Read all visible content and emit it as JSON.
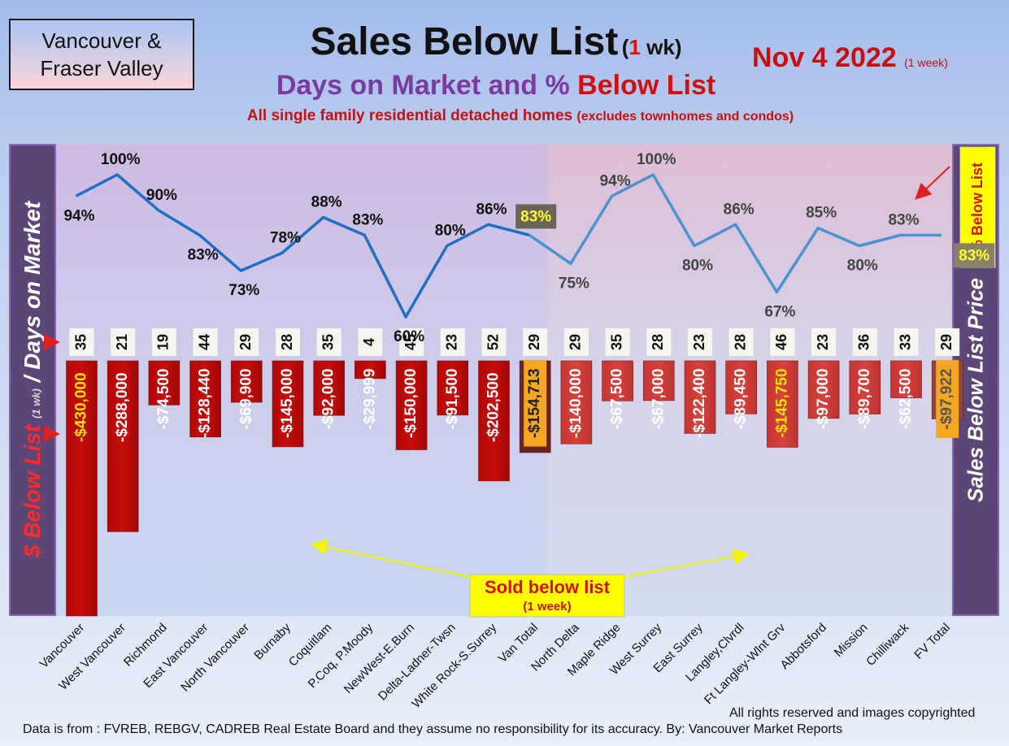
{
  "header": {
    "region": [
      "Vancouver &",
      "Fraser Valley"
    ],
    "title_main": "Sales Below List",
    "title_open": "(",
    "title_num": "1",
    "title_unit": " wk)",
    "subtitle_a": "Days on Market and % ",
    "subtitle_b": "Below List",
    "subtitle2_a": "All single family residential detached homes ",
    "subtitle2_b": "(excludes townhomes and condos)",
    "date": "Nov 4  2022 ",
    "date_note": "(1 week)"
  },
  "side_labels": {
    "left_a": "$ Below List ",
    "left_b": "(1 wk)",
    "left_c": " / Days on Market",
    "right": "Sales Below List Price",
    "pct_box": "% Below List"
  },
  "annotation": {
    "sold_line1": "Sold below list",
    "sold_line2": "(1 week)"
  },
  "footer": {
    "rights": "All rights reserved and  images copyrighted",
    "source": "Data is from : FVREB, REBGV, CADREB Real Estate Board and they assume no responsibility for its accuracy. By: Vancouver Market Reports"
  },
  "colors": {
    "bar_van": "#c80c0c",
    "bar_fv": "#d8413c",
    "bar_total_van": "#6b2222",
    "bar_total_fv": "#8b4a3c",
    "line_van": "#1f6fc4",
    "line_fv": "#4b94cf",
    "panel_bar": "#5c4577"
  },
  "chart_data": {
    "type": "bar",
    "categories": [
      "Vancouver",
      "West Vancouver",
      "Richmond",
      "East Vancouver",
      "North Vancouver",
      "Burnaby",
      "Coquitlam",
      "P.Coq, P.Moody",
      "NewWest-E.Burn",
      "Delta-Ladner-Twsn",
      "White Rock-S.Surrey",
      "Van Total",
      "North Delta",
      "Maple Ridge",
      "West Surrey",
      "East Surrey",
      "Langley,Clvrdl",
      "Ft Langley-Wlnt Grv",
      "Abbotsford",
      "Mission",
      "Chilliwack",
      "FV Total"
    ],
    "below_list_labels": [
      "-$430,000",
      "-$288,000",
      "-$74,500",
      "-$128,440",
      "-$69,900",
      "-$145,000",
      "-$92,000",
      "-$29,999",
      "-$150,000",
      "-$91,500",
      "-$202,500",
      "-$154,713",
      "-$140,000",
      "-$67,500",
      "-$67,000",
      "-$122,400",
      "-$89,450",
      "-$145,750",
      "-$97,000",
      "-$89,700",
      "-$62,500",
      "-$97,922"
    ],
    "below_list_values": [
      -430000,
      -288000,
      -74500,
      -128440,
      -69900,
      -145000,
      -92000,
      -29999,
      -150000,
      -91500,
      -202500,
      -154713,
      -140000,
      -67500,
      -67000,
      -122400,
      -89450,
      -145750,
      -97000,
      -89700,
      -62500,
      -97922
    ],
    "days_on_market": [
      35,
      21,
      19,
      44,
      29,
      28,
      35,
      4,
      45,
      23,
      52,
      29,
      29,
      35,
      28,
      23,
      28,
      46,
      23,
      36,
      33,
      29
    ],
    "pct_below_list": [
      94,
      100,
      90,
      83,
      73,
      78,
      88,
      83,
      60,
      80,
      86,
      83,
      75,
      94,
      100,
      80,
      86,
      67,
      85,
      80,
      83,
      83
    ],
    "pct_labels": [
      "94%",
      "100%",
      "90%",
      "83%",
      "73%",
      "78%",
      "88%",
      "83%",
      "60%",
      "80%",
      "86%",
      "83%",
      "75%",
      "94%",
      "100%",
      "80%",
      "86%",
      "67%",
      "85%",
      "80%",
      "83%",
      "83%"
    ],
    "groups": [
      "Vancouver",
      "Fraser Valley"
    ],
    "totals": [
      "Van Total",
      "FV Total"
    ]
  }
}
